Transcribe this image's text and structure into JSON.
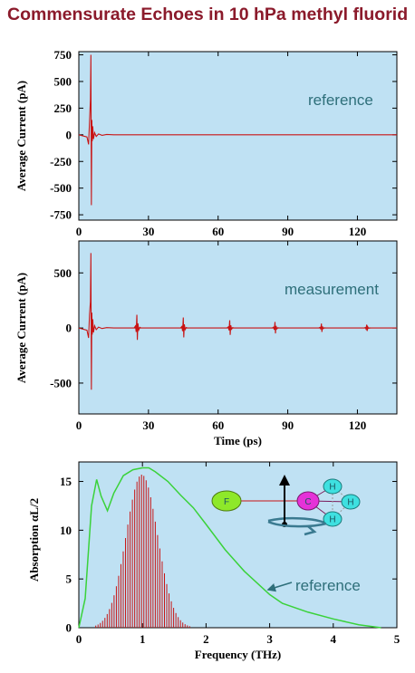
{
  "title": "Commensurate Echoes in 10 hPa methyl fluorid",
  "colors": {
    "plot_bg": "#bfe1f3",
    "trace_red": "#c81414",
    "trace_green": "#3ad23a",
    "annotation": "#2e6f7a",
    "title": "#8b1a2b"
  },
  "chart_data": [
    {
      "type": "line",
      "ylabel": "Average Current (pA)",
      "xlabel": "",
      "annotation": "reference",
      "xlim": [
        0,
        137
      ],
      "ylim": [
        -800,
        780
      ],
      "xticks": [
        0,
        30,
        60,
        90,
        120
      ],
      "xtick_labels": [
        "0",
        "30",
        "60",
        "90",
        "120"
      ],
      "yticks": [
        750,
        500,
        250,
        0,
        -250,
        -500,
        -750
      ],
      "ytick_labels": [
        "750",
        "500",
        "250",
        "0",
        "-250",
        "-500",
        "-750"
      ],
      "series": [
        {
          "x": [
            0,
            3.5,
            4.2,
            4.6,
            5.0,
            5.2,
            5.4,
            5.6,
            5.8,
            6.0,
            6.3,
            6.8,
            7.5,
            8.5,
            10,
            12,
            15,
            137
          ],
          "y": [
            0,
            -20,
            -90,
            120,
            330,
            750,
            -660,
            140,
            -60,
            80,
            -40,
            20,
            -15,
            8,
            -5,
            3,
            0,
            0
          ]
        }
      ]
    },
    {
      "type": "line",
      "ylabel": "Average Current (pA)",
      "xlabel": "Time (ps)",
      "annotation": "measurement",
      "xlim": [
        0,
        137
      ],
      "ylim": [
        -780,
        790
      ],
      "xticks": [
        0,
        30,
        60,
        90,
        120
      ],
      "xtick_labels": [
        "0",
        "30",
        "60",
        "90",
        "120"
      ],
      "yticks": [
        500,
        0,
        -500
      ],
      "ytick_labels": [
        "500",
        "0",
        "-500"
      ],
      "series": [
        {
          "x": [
            0,
            3.5,
            4.2,
            4.6,
            5.0,
            5.2,
            5.4,
            5.6,
            5.8,
            6.0,
            6.3,
            6.8,
            7.5,
            8.5,
            10,
            12,
            15,
            137
          ],
          "y": [
            0,
            -20,
            -90,
            120,
            240,
            680,
            -560,
            140,
            -60,
            80,
            -40,
            20,
            -15,
            8,
            -5,
            3,
            0,
            0
          ]
        }
      ],
      "echoes": [
        {
          "t": 25,
          "amp": 120
        },
        {
          "t": 45,
          "amp": 95
        },
        {
          "t": 65,
          "amp": 70
        },
        {
          "t": 84.5,
          "amp": 55
        },
        {
          "t": 104.5,
          "amp": 40
        },
        {
          "t": 124,
          "amp": 30
        }
      ]
    },
    {
      "type": "area",
      "ylabel": "Absorption αL/2",
      "xlabel": "Frequency (THz)",
      "annotation": "reference",
      "xlim": [
        0,
        5
      ],
      "ylim": [
        0,
        17
      ],
      "xticks": [
        0,
        1,
        2,
        3,
        4,
        5
      ],
      "xtick_labels": [
        "0",
        "1",
        "2",
        "3",
        "4",
        "5"
      ],
      "yticks": [
        0,
        5,
        10,
        15
      ],
      "ytick_labels": [
        "0",
        "5",
        "10",
        "15"
      ],
      "series": [
        {
          "x": [
            0,
            0.1,
            0.2,
            0.28,
            0.35,
            0.45,
            0.55,
            0.7,
            0.85,
            1.0,
            1.1,
            1.2,
            1.4,
            1.6,
            1.8,
            2.0,
            2.3,
            2.6,
            3.0,
            3.2,
            3.6,
            4.0,
            4.4,
            4.75
          ],
          "y": [
            0,
            3,
            12.5,
            15.2,
            13.5,
            12.0,
            13.8,
            15.6,
            16.2,
            16.4,
            16.4,
            16.0,
            15.0,
            13.6,
            12.3,
            10.6,
            8.0,
            5.8,
            3.4,
            2.5,
            1.6,
            0.9,
            0.3,
            0
          ]
        }
      ],
      "lines": {
        "spacing": 0.036,
        "center": 0.99,
        "width": 0.35,
        "peak": 15.7
      }
    }
  ],
  "molecule": {
    "atoms": [
      "F",
      "C",
      "H",
      "H",
      "H"
    ]
  }
}
